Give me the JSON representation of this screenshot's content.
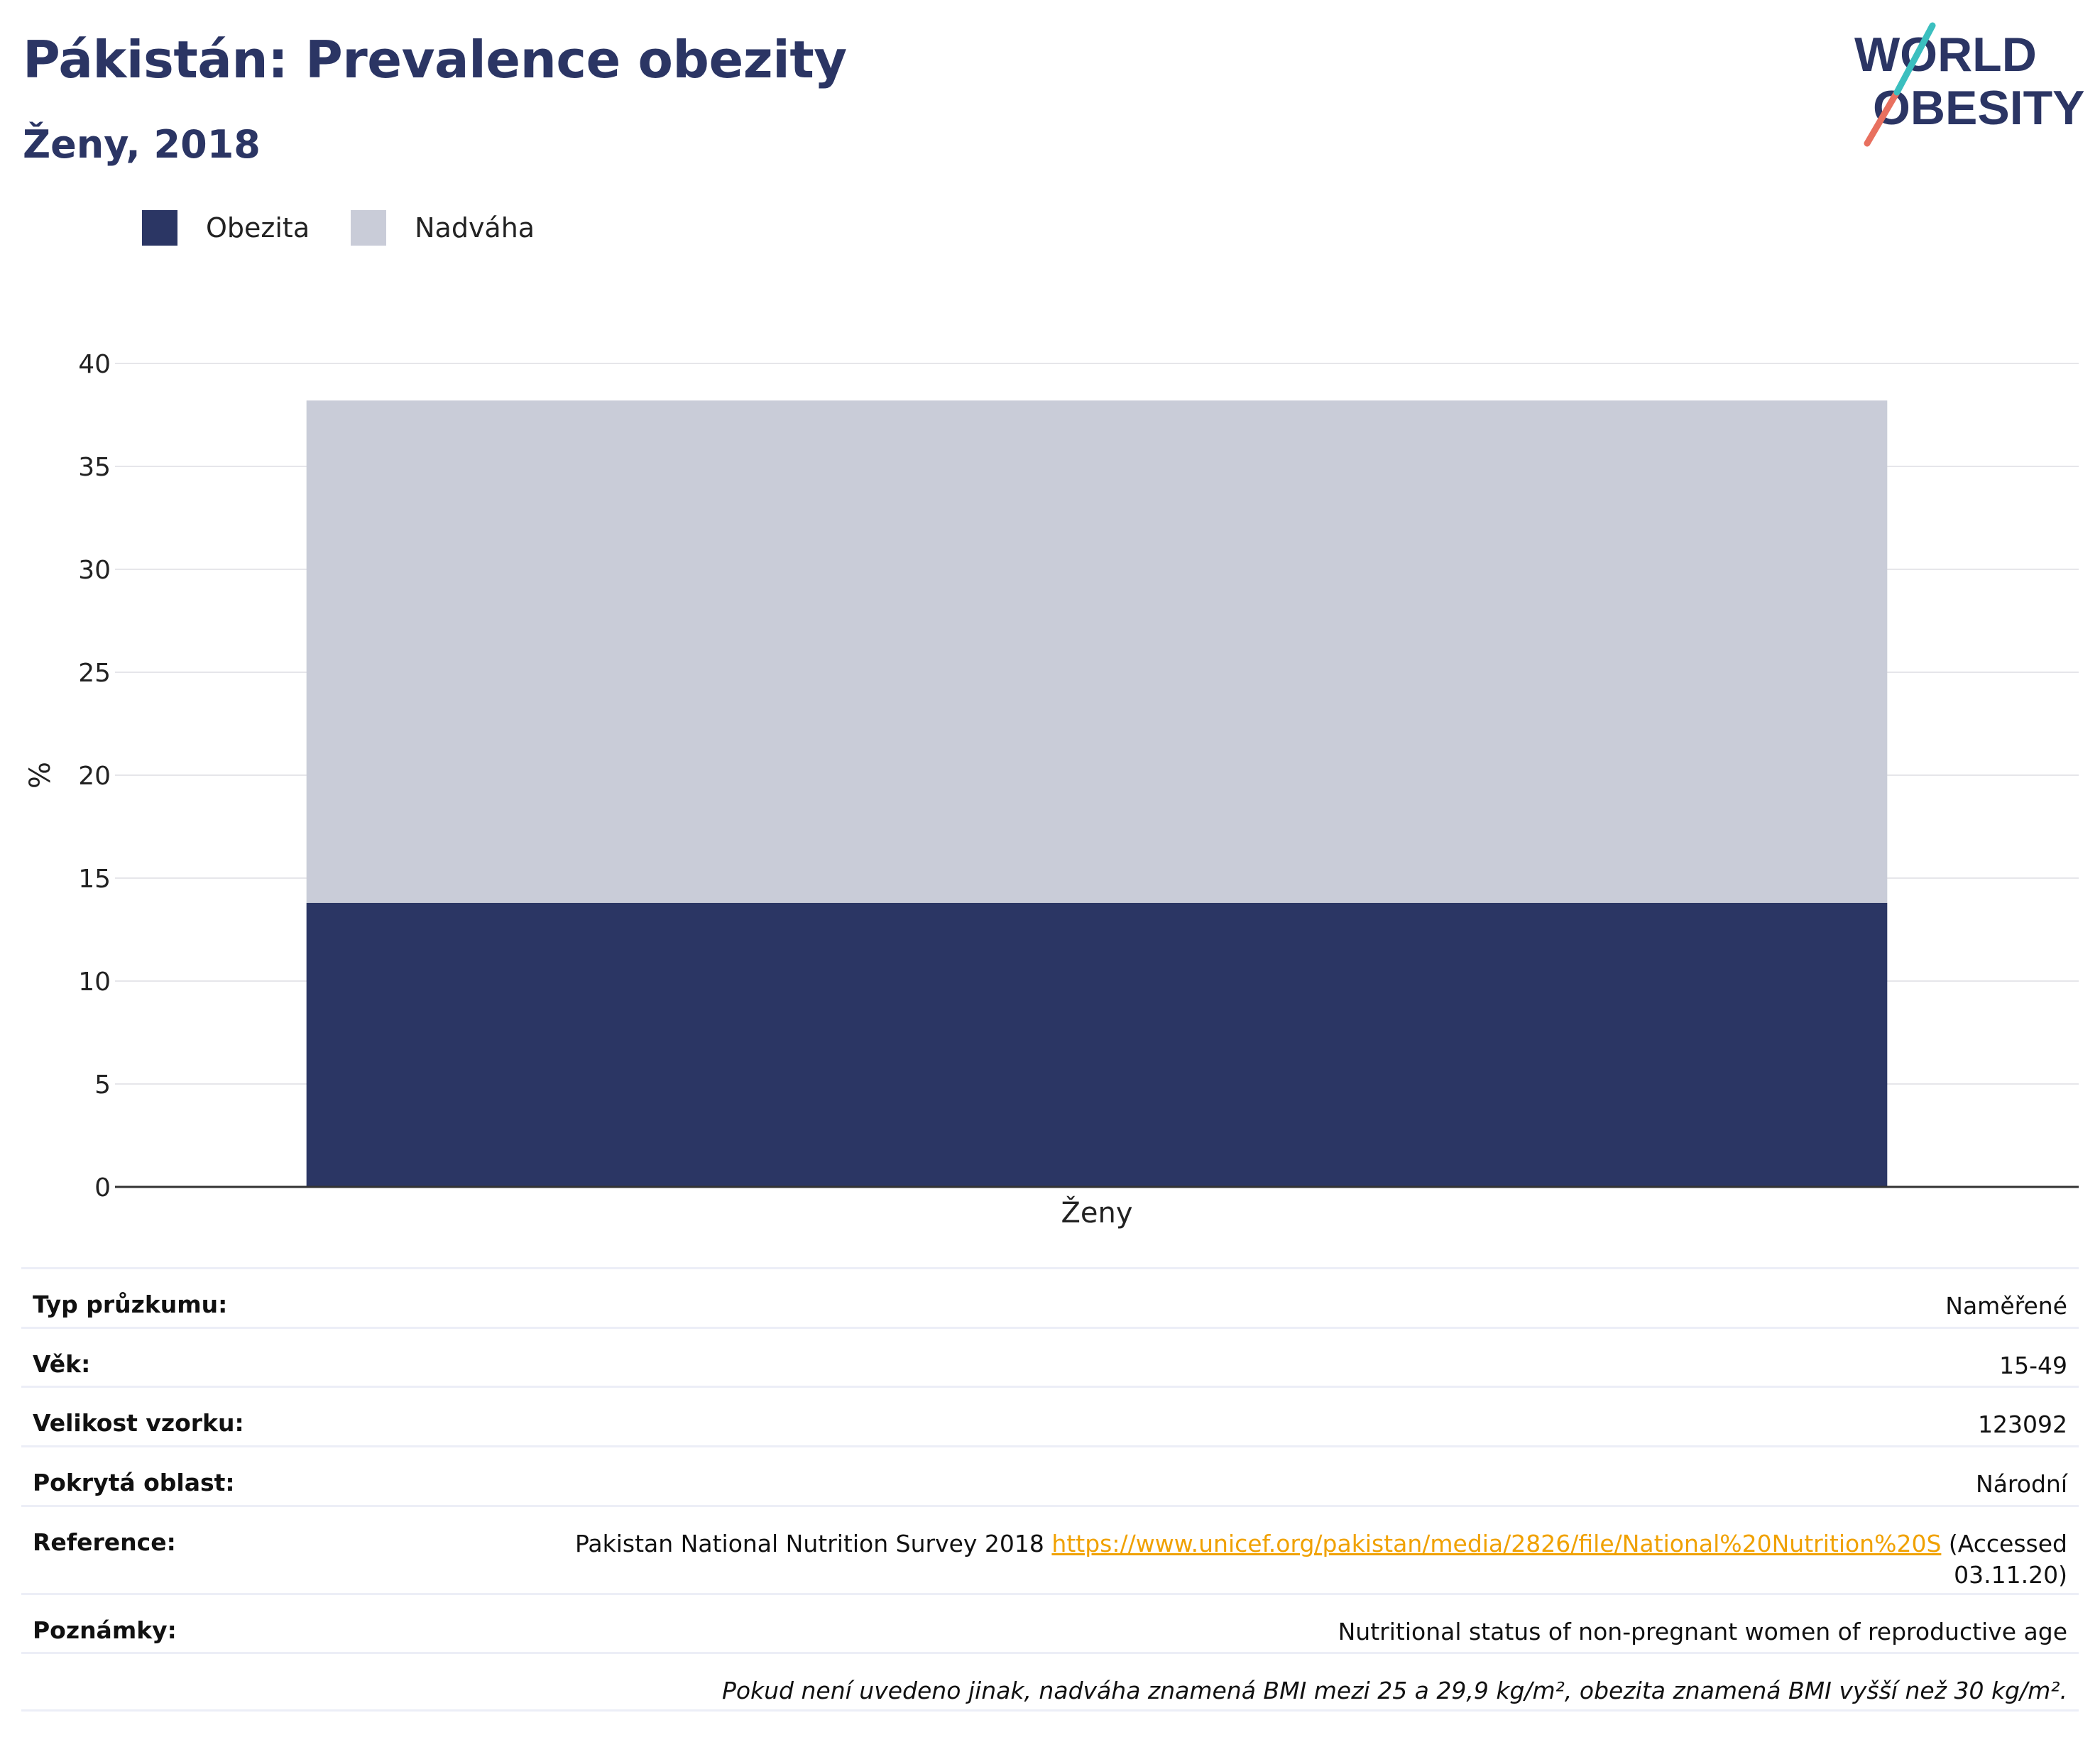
{
  "header": {
    "title": "Pákistán: Prevalence obezity",
    "subtitle": "Ženy, 2018"
  },
  "logo": {
    "line1": "WORLD",
    "line2": "OBESITY"
  },
  "legend": {
    "items": [
      {
        "label": "Obezita",
        "color": "#2b3664"
      },
      {
        "label": "Nadváha",
        "color": "#c9ccd8"
      }
    ]
  },
  "chart_data": {
    "type": "bar",
    "stacked": true,
    "categories": [
      "Ženy"
    ],
    "series": [
      {
        "name": "Obezita",
        "values": [
          13.8
        ],
        "color": "#2b3664"
      },
      {
        "name": "Nadváha",
        "values": [
          24.4
        ],
        "color": "#c9ccd8"
      }
    ],
    "ylabel": "%",
    "xlabel": "",
    "ylim": [
      0,
      40
    ],
    "yticks": [
      0,
      5,
      10,
      15,
      20,
      25,
      30,
      35,
      40
    ],
    "grid": true,
    "legend_position": "top-left"
  },
  "info": {
    "survey_type_label": "Typ průzkumu:",
    "survey_type_value": "Naměřené",
    "age_label": "Věk:",
    "age_value": "15-49",
    "sample_label": "Velikost vzorku:",
    "sample_value": "123092",
    "area_label": "Pokrytá oblast:",
    "area_value": "Národní",
    "reference_label": "Reference:",
    "reference_text": "Pakistan National Nutrition Survey 2018",
    "reference_link": "https://www.unicef.org/pakistan/media/2826/file/National%20Nutrition%20S",
    "reference_accessed": "(Accessed",
    "reference_date": "03.11.20)",
    "notes_label": "Poznámky:",
    "notes_value": "Nutritional status of non-pregnant women of reproductive age",
    "footnote": "Pokud není uvedeno jinak, nadváha znamená BMI mezi 25 a 29,9 kg/m², obezita znamená BMI vyšší než 30 kg/m²."
  }
}
